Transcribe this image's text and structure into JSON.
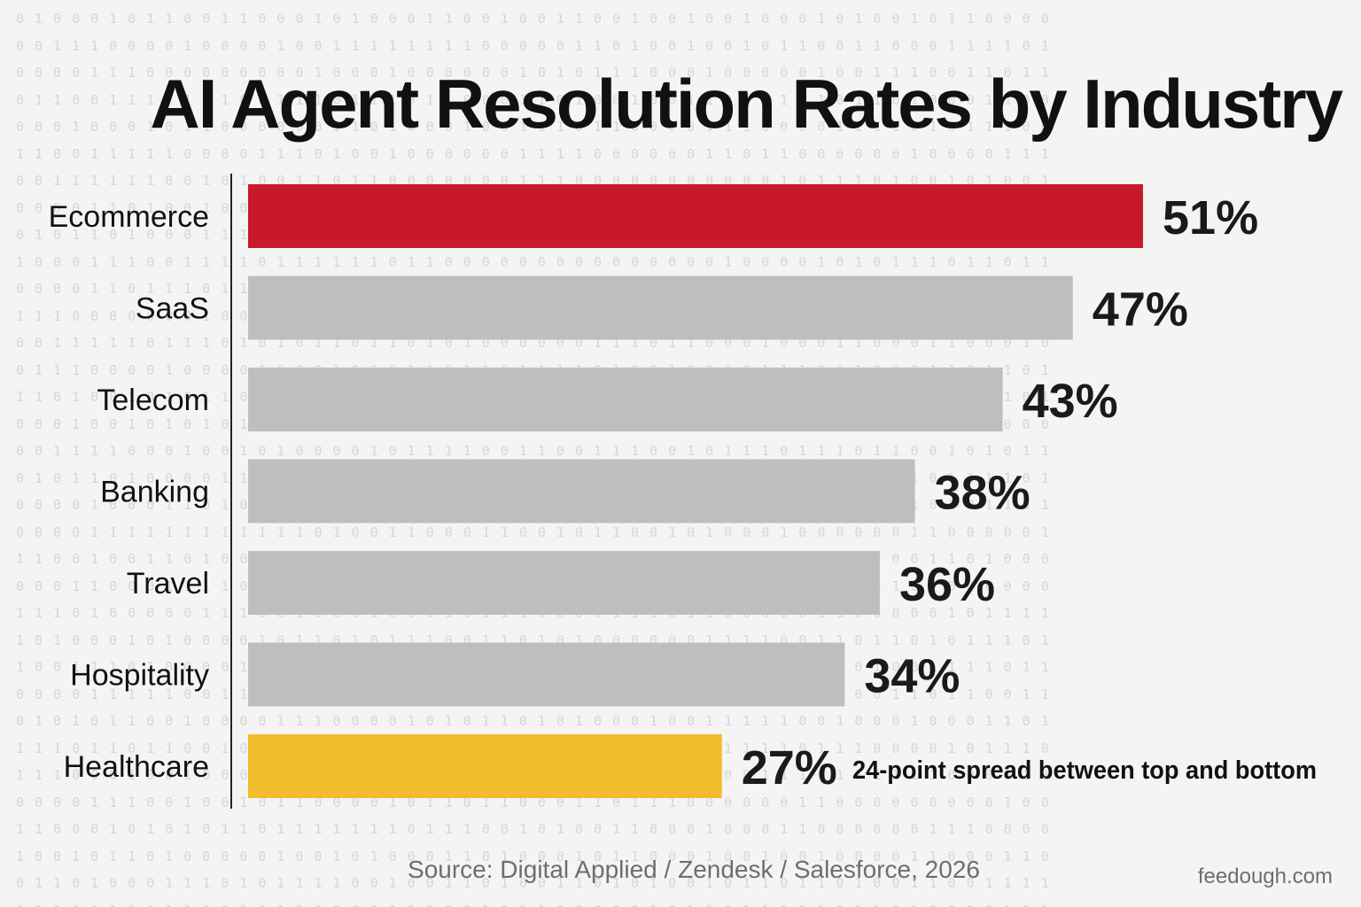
{
  "chart_data": {
    "type": "bar",
    "orientation": "horizontal",
    "title": "AI Agent Resolution Rates by Industry",
    "categories": [
      "Ecommerce",
      "SaaS",
      "Telecom",
      "Banking",
      "Travel",
      "Hospitality",
      "Healthcare"
    ],
    "values": [
      51,
      47,
      43,
      38,
      36,
      34,
      27
    ],
    "value_labels": [
      "51%",
      "47%",
      "43%",
      "38%",
      "36%",
      "34%",
      "27%"
    ],
    "bar_colors": [
      "#c8192b",
      "#bebec0",
      "#bebec0",
      "#bebec0",
      "#bebec0",
      "#bebec0",
      "#f1bd2a"
    ],
    "annotation": "24-point spread between top and bottom",
    "xlim": [
      0,
      51
    ],
    "grid": false,
    "legend": "none"
  },
  "footer": {
    "source": "Source: Digital Applied / Zendesk / Salesforce, 2026",
    "brand": "feedough.com"
  },
  "colors": {
    "highlight_top": "#c8192b",
    "highlight_bottom": "#f1bd2a",
    "neutral_bar": "#bebec0",
    "text": "#111111"
  }
}
